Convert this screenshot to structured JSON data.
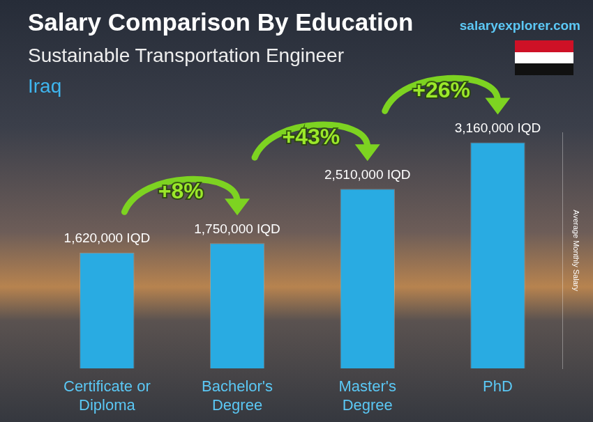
{
  "chart_data": {
    "type": "bar",
    "title": "Salary Comparison By Education",
    "subtitle": "Sustainable Transportation Engineer",
    "annotations": {
      "location": "Iraq",
      "source": "salaryexplorer.com",
      "changes": [
        "+8%",
        "+43%",
        "+26%"
      ]
    },
    "ylabel": "Average Monthly Salary",
    "categories": [
      "Certificate or Diploma",
      "Bachelor's Degree",
      "Master's Degree",
      "PhD"
    ],
    "values": [
      1620000,
      1750000,
      2510000,
      3160000
    ],
    "value_labels": [
      "1,620,000 IQD",
      "1,750,000 IQD",
      "2,510,000 IQD",
      "3,160,000 IQD"
    ],
    "color": "#29abe2",
    "ylim": [
      0,
      3300000
    ],
    "grid": false,
    "tick_labels": "x",
    "data_labels": true
  }
}
